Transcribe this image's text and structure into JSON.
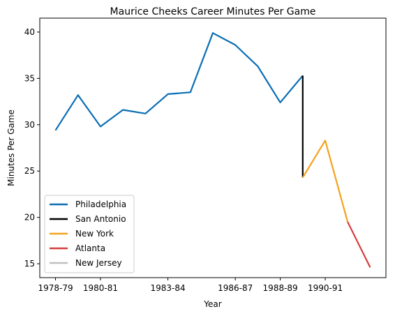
{
  "chart_data": {
    "type": "line",
    "title": "Maurice Cheeks Career Minutes Per Game",
    "xlabel": "Year",
    "ylabel": "Minutes Per Game",
    "x_ticks": [
      "1978-79",
      "1980-81",
      "1983-84",
      "1986-87",
      "1988-89",
      "1990-91"
    ],
    "ylim": [
      13.5,
      41.5
    ],
    "y_ticks": [
      15,
      20,
      25,
      30,
      35,
      40
    ],
    "grid": false,
    "legend_position": "lower-left",
    "series": [
      {
        "name": "Philadelphia",
        "color": "#0a6eb4",
        "x": [
          "1978-79",
          "1979-80",
          "1980-81",
          "1981-82",
          "1982-83",
          "1983-84",
          "1984-85",
          "1985-86",
          "1986-87",
          "1987-88",
          "1988-89",
          "1989-90"
        ],
        "y": [
          29.4,
          33.2,
          29.8,
          31.6,
          31.2,
          33.3,
          33.5,
          39.9,
          38.6,
          36.3,
          32.4,
          35.3
        ]
      },
      {
        "name": "San Antonio",
        "color": "#000000",
        "x": [
          "1989-90",
          "1989-90"
        ],
        "y": [
          35.3,
          24.3
        ]
      },
      {
        "name": "New York",
        "color": "#f4a21c",
        "x": [
          "1989-90",
          "1990-91",
          "1991-92"
        ],
        "y": [
          24.3,
          28.3,
          19.5
        ]
      },
      {
        "name": "Atlanta",
        "color": "#d63d3d",
        "x": [
          "1991-92",
          "1992-93"
        ],
        "y": [
          19.5,
          14.6
        ]
      },
      {
        "name": "New Jersey",
        "color": "#c0c0c0",
        "x": [],
        "y": []
      }
    ]
  }
}
